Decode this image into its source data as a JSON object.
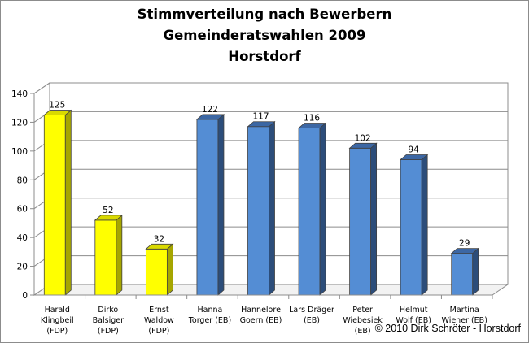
{
  "chart_data": {
    "type": "bar",
    "title": [
      "Stimmverteilung nach Bewerbern",
      "Gemeinderatswahlen 2009",
      "Horstdorf"
    ],
    "categories": [
      [
        "Harald",
        "Klingbeil",
        "(FDP)"
      ],
      [
        "Dirko",
        "Balsiger",
        "(FDP)"
      ],
      [
        "Ernst",
        "Waldow",
        "(FDP)"
      ],
      [
        "Hanna",
        "Torger (EB)"
      ],
      [
        "Hannelore",
        "Goern (EB)"
      ],
      [
        "Lars Dräger",
        "(EB)"
      ],
      [
        "Peter",
        "Wiebesiek",
        "(EB)"
      ],
      [
        "Helmut",
        "Wolf (EB)"
      ],
      [
        "Martina",
        "Wiener (EB)"
      ]
    ],
    "values": [
      125,
      52,
      32,
      122,
      117,
      116,
      102,
      94,
      29
    ],
    "data_labels": [
      "125",
      "52",
      "32",
      "122",
      "117",
      "116",
      "102",
      "94",
      "29"
    ],
    "party": [
      "FDP",
      "FDP",
      "FDP",
      "EB",
      "EB",
      "EB",
      "EB",
      "EB",
      "EB"
    ],
    "colors": {
      "FDP": {
        "front": "#ffff00",
        "side": "#a6a600",
        "top": "#d9d900"
      },
      "EB": {
        "front": "#548dd4",
        "side": "#2c4d7a",
        "top": "#3c67a4"
      }
    },
    "y_ticks": [
      "0",
      "20",
      "40",
      "60",
      "80",
      "100",
      "120",
      "140"
    ],
    "ylim": [
      0,
      140
    ],
    "grid": true,
    "legend": "none",
    "xlabel": "",
    "ylabel": ""
  },
  "copyright": "© 2010 Dirk Schröter - Horstdorf"
}
